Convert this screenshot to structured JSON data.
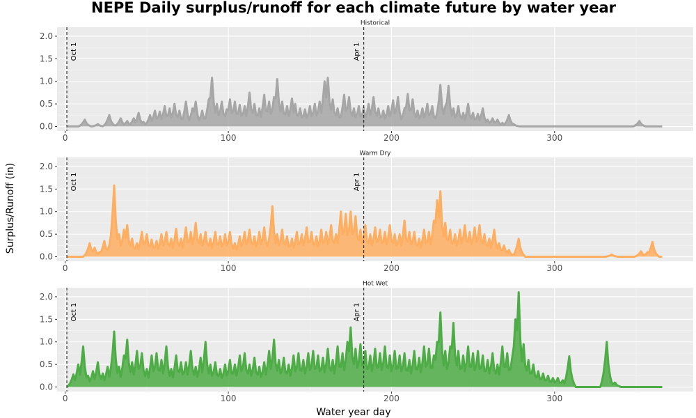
{
  "chart_data": {
    "type": "area",
    "title": "NEPE Daily surplus/runoff for each climate future by water year",
    "xlabel": "Water year day",
    "ylabel": "Surplus/Runoff (in)",
    "xlim": [
      -5,
      385
    ],
    "ylim": [
      -0.1,
      2.2
    ],
    "x_ticks": [
      0,
      100,
      200,
      300
    ],
    "y_ticks": [
      0.0,
      0.5,
      1.0,
      1.5,
      2.0
    ],
    "y_tick_labels": [
      "0.0",
      "0.5",
      "1.0",
      "1.5",
      "2.0"
    ],
    "grid": true,
    "legend": "none",
    "vertical_lines": [
      {
        "x": 1,
        "label": "Oct 1"
      },
      {
        "x": 183,
        "label": "Apr 1"
      }
    ],
    "series": [
      {
        "name": "Historical",
        "color": "#a6a6a6",
        "peaks": [
          [
            12,
            0.15
          ],
          [
            20,
            0.05
          ],
          [
            27,
            0.25
          ],
          [
            34,
            0.18
          ],
          [
            38,
            0.12
          ],
          [
            42,
            0.18
          ],
          [
            45,
            0.3
          ],
          [
            48,
            0.1
          ],
          [
            52,
            0.25
          ],
          [
            55,
            0.35
          ],
          [
            58,
            0.33
          ],
          [
            61,
            0.45
          ],
          [
            64,
            0.4
          ],
          [
            67,
            0.5
          ],
          [
            70,
            0.35
          ],
          [
            74,
            0.55
          ],
          [
            78,
            0.4
          ],
          [
            80,
            0.55
          ],
          [
            84,
            0.35
          ],
          [
            88,
            0.6
          ],
          [
            90,
            1.08
          ],
          [
            93,
            0.5
          ],
          [
            96,
            0.55
          ],
          [
            99,
            0.38
          ],
          [
            101,
            0.6
          ],
          [
            104,
            0.55
          ],
          [
            107,
            0.48
          ],
          [
            110,
            0.45
          ],
          [
            113,
            0.75
          ],
          [
            116,
            0.5
          ],
          [
            119,
            0.4
          ],
          [
            122,
            0.7
          ],
          [
            125,
            0.55
          ],
          [
            128,
            0.65
          ],
          [
            130,
            1.05
          ],
          [
            133,
            0.55
          ],
          [
            136,
            0.45
          ],
          [
            139,
            0.62
          ],
          [
            141,
            0.5
          ],
          [
            144,
            0.4
          ],
          [
            147,
            0.38
          ],
          [
            150,
            0.45
          ],
          [
            153,
            0.5
          ],
          [
            156,
            0.55
          ],
          [
            159,
            1.0
          ],
          [
            161,
            1.08
          ],
          [
            164,
            0.6
          ],
          [
            167,
            0.4
          ],
          [
            171,
            0.7
          ],
          [
            174,
            0.65
          ],
          [
            177,
            0.4
          ],
          [
            180,
            0.45
          ],
          [
            183,
            0.42
          ],
          [
            186,
            0.5
          ],
          [
            189,
            0.65
          ],
          [
            192,
            0.4
          ],
          [
            195,
            0.35
          ],
          [
            198,
            0.45
          ],
          [
            201,
            0.58
          ],
          [
            204,
            0.65
          ],
          [
            208,
            0.4
          ],
          [
            210,
            0.72
          ],
          [
            213,
            0.6
          ],
          [
            216,
            0.35
          ],
          [
            219,
            0.4
          ],
          [
            222,
            0.5
          ],
          [
            225,
            0.45
          ],
          [
            228,
            0.3
          ],
          [
            230,
            0.92
          ],
          [
            233,
            0.45
          ],
          [
            235,
            0.9
          ],
          [
            238,
            0.4
          ],
          [
            241,
            0.45
          ],
          [
            244,
            0.3
          ],
          [
            247,
            0.5
          ],
          [
            250,
            0.3
          ],
          [
            253,
            0.28
          ],
          [
            256,
            0.4
          ],
          [
            259,
            0.15
          ],
          [
            262,
            0.18
          ],
          [
            265,
            0.15
          ],
          [
            268,
            0.08
          ],
          [
            272,
            0.25
          ],
          [
            275,
            0.05
          ],
          [
            352,
            0.12
          ]
        ],
        "end_day": 366
      },
      {
        "name": "Warm Dry",
        "color": "#fdae61",
        "peaks": [
          [
            15,
            0.3
          ],
          [
            18,
            0.2
          ],
          [
            21,
            0.1
          ],
          [
            24,
            0.35
          ],
          [
            27,
            0.25
          ],
          [
            30,
            1.58
          ],
          [
            33,
            0.5
          ],
          [
            36,
            0.6
          ],
          [
            38,
            0.7
          ],
          [
            41,
            0.4
          ],
          [
            44,
            0.3
          ],
          [
            47,
            0.55
          ],
          [
            50,
            0.5
          ],
          [
            53,
            0.38
          ],
          [
            56,
            0.35
          ],
          [
            59,
            0.5
          ],
          [
            62,
            0.55
          ],
          [
            65,
            0.4
          ],
          [
            68,
            0.62
          ],
          [
            71,
            0.4
          ],
          [
            74,
            0.65
          ],
          [
            77,
            0.55
          ],
          [
            80,
            0.75
          ],
          [
            83,
            0.5
          ],
          [
            86,
            0.55
          ],
          [
            89,
            0.4
          ],
          [
            92,
            0.55
          ],
          [
            95,
            0.45
          ],
          [
            98,
            0.5
          ],
          [
            101,
            0.55
          ],
          [
            104,
            0.3
          ],
          [
            107,
            0.45
          ],
          [
            110,
            0.55
          ],
          [
            113,
            0.6
          ],
          [
            116,
            0.45
          ],
          [
            119,
            0.55
          ],
          [
            122,
            0.65
          ],
          [
            125,
            0.4
          ],
          [
            127,
            1.12
          ],
          [
            130,
            0.5
          ],
          [
            133,
            0.6
          ],
          [
            136,
            0.45
          ],
          [
            139,
            0.4
          ],
          [
            142,
            0.55
          ],
          [
            145,
            0.5
          ],
          [
            148,
            0.65
          ],
          [
            151,
            0.55
          ],
          [
            154,
            0.45
          ],
          [
            157,
            0.6
          ],
          [
            160,
            0.55
          ],
          [
            163,
            0.7
          ],
          [
            166,
            0.5
          ],
          [
            169,
            1.0
          ],
          [
            172,
            0.95
          ],
          [
            175,
            1.0
          ],
          [
            178,
            0.9
          ],
          [
            181,
            0.6
          ],
          [
            184,
            0.7
          ],
          [
            187,
            0.5
          ],
          [
            190,
            0.65
          ],
          [
            193,
            0.6
          ],
          [
            196,
            0.55
          ],
          [
            199,
            0.7
          ],
          [
            202,
            0.5
          ],
          [
            205,
            0.5
          ],
          [
            208,
            0.8
          ],
          [
            211,
            0.55
          ],
          [
            214,
            0.55
          ],
          [
            217,
            0.4
          ],
          [
            220,
            0.6
          ],
          [
            223,
            0.55
          ],
          [
            226,
            0.8
          ],
          [
            228,
            1.25
          ],
          [
            230,
            1.45
          ],
          [
            233,
            0.75
          ],
          [
            236,
            0.6
          ],
          [
            239,
            0.5
          ],
          [
            242,
            0.6
          ],
          [
            245,
            0.7
          ],
          [
            248,
            0.55
          ],
          [
            251,
            0.65
          ],
          [
            254,
            0.7
          ],
          [
            257,
            0.5
          ],
          [
            260,
            0.4
          ],
          [
            263,
            0.6
          ],
          [
            266,
            0.3
          ],
          [
            269,
            0.25
          ],
          [
            272,
            0.15
          ],
          [
            278,
            0.4
          ],
          [
            335,
            0.05
          ],
          [
            353,
            0.12
          ],
          [
            357,
            0.1
          ],
          [
            360,
            0.33
          ]
        ],
        "end_day": 366
      },
      {
        "name": "Hot Wet",
        "color": "#4dac45",
        "peaks": [
          [
            5,
            0.28
          ],
          [
            8,
            0.5
          ],
          [
            11,
            0.9
          ],
          [
            14,
            0.25
          ],
          [
            17,
            0.35
          ],
          [
            20,
            0.55
          ],
          [
            23,
            0.3
          ],
          [
            26,
            0.45
          ],
          [
            29,
            0.7
          ],
          [
            30,
            1.23
          ],
          [
            33,
            0.45
          ],
          [
            36,
            0.7
          ],
          [
            38,
            1.05
          ],
          [
            41,
            0.55
          ],
          [
            44,
            0.8
          ],
          [
            47,
            0.75
          ],
          [
            50,
            0.4
          ],
          [
            53,
            0.7
          ],
          [
            56,
            0.75
          ],
          [
            59,
            0.6
          ],
          [
            62,
            0.9
          ],
          [
            65,
            0.4
          ],
          [
            68,
            0.7
          ],
          [
            71,
            0.55
          ],
          [
            74,
            0.55
          ],
          [
            77,
            0.8
          ],
          [
            80,
            0.45
          ],
          [
            83,
            0.65
          ],
          [
            86,
            1.0
          ],
          [
            89,
            0.5
          ],
          [
            92,
            0.55
          ],
          [
            95,
            0.4
          ],
          [
            98,
            0.5
          ],
          [
            101,
            0.6
          ],
          [
            104,
            0.5
          ],
          [
            107,
            0.7
          ],
          [
            110,
            0.75
          ],
          [
            113,
            0.5
          ],
          [
            116,
            0.65
          ],
          [
            119,
            0.45
          ],
          [
            122,
            0.55
          ],
          [
            125,
            0.8
          ],
          [
            128,
            1.05
          ],
          [
            131,
            0.6
          ],
          [
            134,
            0.65
          ],
          [
            137,
            0.5
          ],
          [
            140,
            0.7
          ],
          [
            143,
            0.75
          ],
          [
            146,
            0.6
          ],
          [
            149,
            0.75
          ],
          [
            152,
            0.8
          ],
          [
            155,
            0.7
          ],
          [
            158,
            0.65
          ],
          [
            161,
            0.85
          ],
          [
            164,
            0.6
          ],
          [
            167,
            0.9
          ],
          [
            170,
            0.75
          ],
          [
            173,
            1.0
          ],
          [
            175,
            1.32
          ],
          [
            178,
            0.85
          ],
          [
            181,
            0.95
          ],
          [
            184,
            0.8
          ],
          [
            187,
            0.7
          ],
          [
            190,
            0.85
          ],
          [
            193,
            0.75
          ],
          [
            196,
            0.9
          ],
          [
            199,
            0.7
          ],
          [
            202,
            0.8
          ],
          [
            205,
            0.7
          ],
          [
            208,
            0.75
          ],
          [
            211,
            0.6
          ],
          [
            214,
            0.8
          ],
          [
            217,
            0.65
          ],
          [
            220,
            0.9
          ],
          [
            223,
            0.85
          ],
          [
            226,
            0.7
          ],
          [
            228,
            1.0
          ],
          [
            230,
            1.65
          ],
          [
            233,
            0.8
          ],
          [
            236,
            0.9
          ],
          [
            238,
            1.42
          ],
          [
            241,
            0.8
          ],
          [
            244,
            0.7
          ],
          [
            247,
            0.9
          ],
          [
            250,
            0.75
          ],
          [
            253,
            0.8
          ],
          [
            256,
            0.7
          ],
          [
            259,
            0.6
          ],
          [
            262,
            0.75
          ],
          [
            265,
            0.5
          ],
          [
            268,
            0.9
          ],
          [
            271,
            0.75
          ],
          [
            274,
            0.65
          ],
          [
            276,
            1.5
          ],
          [
            278,
            2.1
          ],
          [
            281,
            0.95
          ],
          [
            284,
            0.6
          ],
          [
            287,
            0.5
          ],
          [
            290,
            0.35
          ],
          [
            293,
            0.3
          ],
          [
            296,
            0.25
          ],
          [
            299,
            0.2
          ],
          [
            302,
            0.2
          ],
          [
            305,
            0.15
          ],
          [
            309,
            0.68
          ],
          [
            332,
            1.0
          ],
          [
            334,
            0.15
          ],
          [
            337,
            0.1
          ]
        ],
        "end_day": 366
      }
    ]
  }
}
